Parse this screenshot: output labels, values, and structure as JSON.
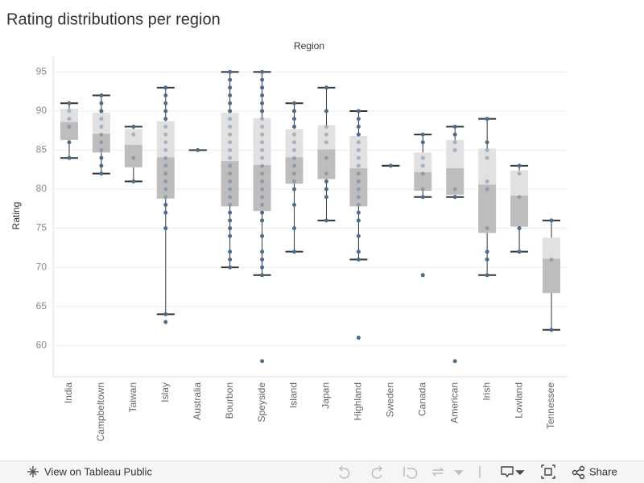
{
  "chart_data": {
    "type": "boxplot",
    "title": "Rating distributions per region",
    "column_header": "Region",
    "y_label": "Rating",
    "categories": [
      "India",
      "Campbeltown",
      "Taiwan",
      "Islay",
      "Australia",
      "Bourbon",
      "Speyside",
      "Island",
      "Japan",
      "Highland",
      "Sweden",
      "Canada",
      "American",
      "Irish",
      "Lowland",
      "Tennessee"
    ],
    "whisker_low": [
      84,
      82,
      81,
      64,
      85,
      70,
      69,
      72,
      76,
      71,
      83,
      79,
      79,
      69,
      72,
      62
    ],
    "q1": [
      86.3,
      84.7,
      82.8,
      78.8,
      85,
      77.8,
      77.2,
      80.7,
      81.3,
      77.8,
      83,
      79.8,
      79.3,
      74.4,
      75.2,
      66.7
    ],
    "median": [
      88.6,
      87.1,
      85.7,
      84.1,
      85,
      83.6,
      83.1,
      84.1,
      85.1,
      82.7,
      83,
      82.2,
      82.7,
      80.6,
      79.2,
      71.1
    ],
    "q3": [
      90.3,
      89.8,
      87.7,
      88.7,
      85,
      89.8,
      89.1,
      87.7,
      88.2,
      86.8,
      83,
      84.7,
      86.3,
      85.2,
      82.4,
      73.8
    ],
    "whisker_high": [
      91,
      92,
      88,
      93,
      85,
      95,
      95,
      91,
      93,
      90,
      83,
      87,
      88,
      89,
      83,
      76
    ],
    "points": [
      [
        91,
        90,
        89,
        88,
        86,
        84
      ],
      [
        92,
        91,
        90,
        89,
        88,
        87,
        86,
        85,
        84,
        83,
        82
      ],
      [
        88,
        87,
        84,
        81
      ],
      [
        93,
        92,
        91,
        90,
        89,
        88,
        87,
        86,
        85,
        84,
        83,
        82,
        81,
        80,
        79,
        78,
        77,
        75,
        64,
        63
      ],
      [
        85
      ],
      [
        95,
        94,
        93,
        92,
        91,
        90,
        89,
        88,
        87,
        86,
        85,
        84,
        83,
        82,
        81,
        80,
        79,
        78,
        77,
        76,
        75,
        74,
        72,
        71,
        70
      ],
      [
        95,
        94,
        93,
        92,
        91,
        90,
        89,
        88,
        87,
        86,
        85,
        84,
        83,
        82,
        81,
        80,
        79,
        78,
        77,
        76,
        74,
        72,
        71,
        70,
        69,
        58
      ],
      [
        91,
        90,
        89,
        88,
        87,
        86,
        85,
        84,
        83,
        82,
        81,
        80,
        78,
        75,
        72
      ],
      [
        93,
        90,
        88,
        87,
        86,
        84,
        82,
        81,
        80,
        79,
        76
      ],
      [
        90,
        89,
        88,
        87,
        86,
        85,
        84,
        83,
        82,
        81,
        80,
        79,
        78,
        77,
        76,
        74,
        72,
        71,
        61
      ],
      [
        83
      ],
      [
        87,
        86,
        84,
        83,
        82,
        80,
        79,
        69
      ],
      [
        88,
        87,
        86,
        85,
        80,
        79,
        58
      ],
      [
        89,
        86,
        85,
        84,
        81,
        80,
        75,
        72,
        71,
        69
      ],
      [
        83,
        82,
        79,
        75,
        72
      ],
      [
        76,
        71,
        62
      ]
    ],
    "box_upper_color": "#e1e1e1",
    "box_lower_color": "#bdbdbd",
    "point_color": "#4e6b8c",
    "whisker_color": "#333333",
    "ylim": [
      56,
      97
    ],
    "yticks": [
      60,
      65,
      70,
      75,
      80,
      85,
      90,
      95
    ],
    "grid": true
  },
  "footer": {
    "view_link": "View on Tableau Public",
    "share": "Share"
  }
}
